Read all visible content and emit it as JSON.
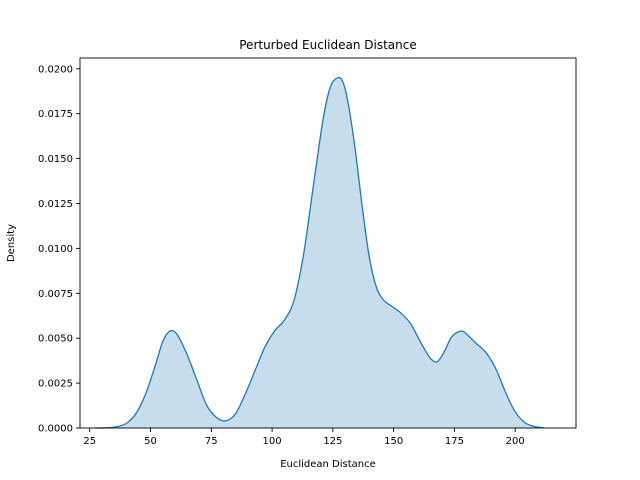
{
  "chart_data": {
    "type": "area",
    "title": "Perturbed Euclidean Distance",
    "xlabel": "Euclidean Distance",
    "ylabel": "Density",
    "xlim": [
      21,
      225
    ],
    "ylim": [
      0,
      0.0206
    ],
    "xticks": [
      25,
      50,
      75,
      100,
      125,
      150,
      175,
      200
    ],
    "xtick_labels": [
      "25",
      "50",
      "75",
      "100",
      "125",
      "150",
      "175",
      "200"
    ],
    "yticks": [
      0,
      0.0025,
      0.005,
      0.0075,
      0.01,
      0.0125,
      0.015,
      0.0175,
      0.02
    ],
    "ytick_labels": [
      "0.0000",
      "0.0025",
      "0.0050",
      "0.0075",
      "0.0100",
      "0.0125",
      "0.0150",
      "0.0175",
      "0.0200"
    ],
    "grid": false,
    "series": [
      {
        "line_color": "#1f77b4",
        "fill_color": "#1f77b4",
        "fill_alpha": 0.25,
        "x": [
          27,
          32,
          36,
          40,
          44,
          48,
          52,
          55,
          58,
          61,
          65,
          69,
          73,
          77,
          81,
          85,
          89,
          93,
          97,
          101,
          105,
          109,
          113,
          117,
          121,
          124,
          127,
          129,
          131,
          134,
          137,
          140,
          143,
          146,
          149,
          153,
          157,
          161,
          165,
          168,
          171,
          174,
          178,
          181,
          184,
          188,
          192,
          196,
          200,
          204,
          208,
          212
        ],
        "y": [
          0.0,
          1e-05,
          7e-05,
          0.00025,
          0.0008,
          0.0019,
          0.0035,
          0.0048,
          0.0054,
          0.0052,
          0.0041,
          0.0027,
          0.0013,
          0.0006,
          0.0004,
          0.0008,
          0.0019,
          0.0032,
          0.0045,
          0.0054,
          0.006,
          0.0071,
          0.0097,
          0.0135,
          0.0172,
          0.019,
          0.0195,
          0.0193,
          0.0183,
          0.0157,
          0.0124,
          0.0095,
          0.0078,
          0.0071,
          0.0068,
          0.0064,
          0.0058,
          0.0048,
          0.0039,
          0.0037,
          0.0043,
          0.0051,
          0.0054,
          0.0051,
          0.0047,
          0.0042,
          0.0033,
          0.002,
          0.0009,
          0.0003,
          8e-05,
          0.0
        ]
      }
    ]
  }
}
